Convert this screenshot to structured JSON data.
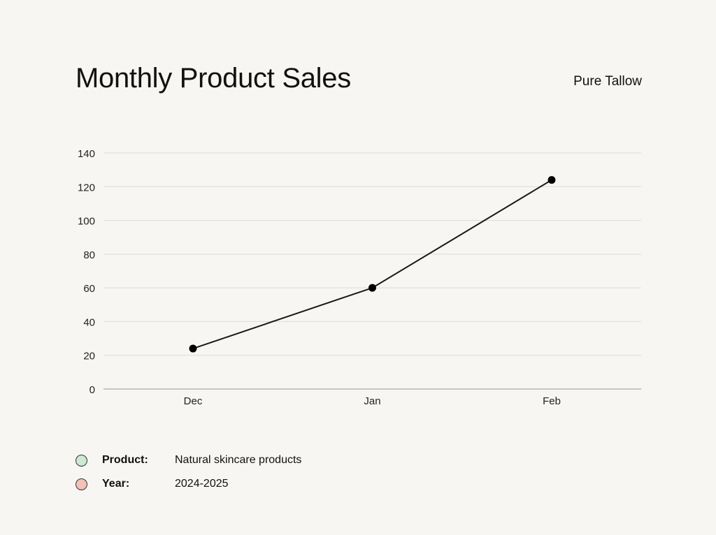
{
  "brand": "Pure Tallow",
  "legend": [
    {
      "key": "Product:",
      "value": "Natural skincare products",
      "color": "#cde9d3"
    },
    {
      "key": "Year:",
      "value": "2024-2025",
      "color": "#f3c1b8"
    }
  ],
  "chart_data": {
    "type": "line",
    "title": "Monthly Product Sales",
    "xlabel": "",
    "ylabel": "",
    "categories": [
      "Dec",
      "Jan",
      "Feb"
    ],
    "series": [
      {
        "values": [
          24,
          60,
          124
        ]
      }
    ],
    "ylim": [
      0,
      140
    ],
    "yticks": [
      0,
      20,
      40,
      60,
      80,
      100,
      120,
      140
    ],
    "grid": true,
    "line_color": "#1a1a1a",
    "grid_color": "#dedbd6"
  }
}
